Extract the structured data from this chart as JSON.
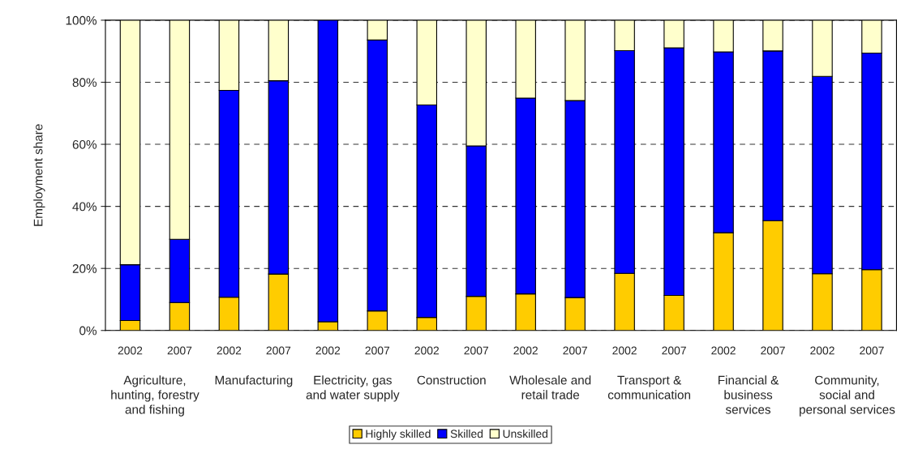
{
  "chart_data": {
    "type": "bar",
    "stacked": true,
    "ylabel": "Employment share",
    "categories": [
      "2002",
      "2007",
      "2002",
      "2007",
      "2002",
      "2007",
      "2002",
      "2007",
      "2002",
      "2007",
      "2002",
      "2007",
      "2002",
      "2007",
      "2002",
      "2007"
    ],
    "series": [
      {
        "name": "Highly skilled",
        "color": "#ffcc00",
        "values": [
          3.2,
          9.0,
          10.7,
          18.2,
          2.8,
          6.3,
          4.2,
          11.0,
          11.8,
          10.6,
          18.4,
          11.3,
          31.5,
          35.4,
          18.3,
          19.6
        ]
      },
      {
        "name": "Skilled",
        "color": "#0000ff",
        "values": [
          18.0,
          20.4,
          66.7,
          62.3,
          97.2,
          87.3,
          68.5,
          48.5,
          63.1,
          63.5,
          71.8,
          79.8,
          58.3,
          54.7,
          63.6,
          69.8
        ]
      },
      {
        "name": "Unskilled",
        "color": "#ffffcc",
        "values": [
          78.8,
          70.6,
          22.6,
          19.5,
          null,
          6.4,
          27.3,
          40.5,
          25.1,
          25.9,
          9.8,
          8.9,
          10.2,
          9.9,
          18.1,
          10.6
        ]
      }
    ],
    "annotations": [
      "Agriculture,\nhunting, forestry\nand fishing",
      "Manufacturing",
      "Electricity, gas\nand water supply",
      "Construction",
      "Wholesale and\nretail trade",
      "Transport &\ncommunication",
      "Financial &\nbusiness\nservices",
      "Community,\nsocial and\npersonal services"
    ],
    "ylim": [
      0,
      100
    ],
    "yticks": [
      {
        "value": 0,
        "label": "0%"
      },
      {
        "value": 20,
        "label": "20%"
      },
      {
        "value": 40,
        "label": "40%"
      },
      {
        "value": 60,
        "label": "60%"
      },
      {
        "value": 80,
        "label": "80%"
      },
      {
        "value": 100,
        "label": "100%"
      }
    ],
    "grid": "y",
    "legend": "bottom"
  }
}
